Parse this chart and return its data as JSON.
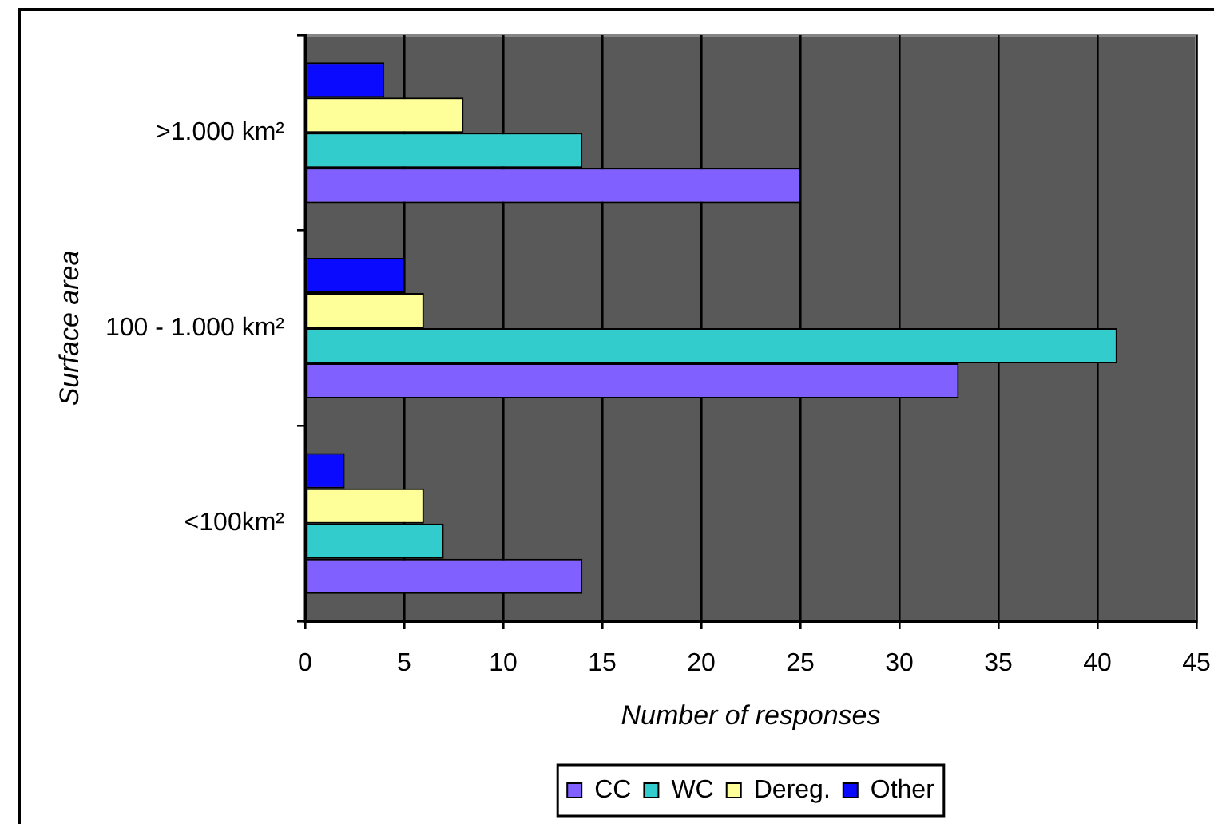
{
  "chart_data": {
    "type": "bar",
    "orientation": "horizontal",
    "xlabel": "Number of responses",
    "ylabel": "Surface area",
    "categories": [
      ">1.000 km²",
      "100 - 1.000 km²",
      "<100km²"
    ],
    "series": [
      {
        "name": "CC",
        "color": "#8060ff",
        "values": [
          25,
          33,
          14
        ]
      },
      {
        "name": "WC",
        "color": "#33cccc",
        "values": [
          14,
          41,
          7
        ]
      },
      {
        "name": "Dereg.",
        "color": "#ffff99",
        "values": [
          8,
          6,
          6
        ]
      },
      {
        "name": "Other",
        "color": "#0a0aff",
        "values": [
          4,
          5,
          2
        ]
      }
    ],
    "xlim": [
      0,
      45
    ],
    "xticks": [
      0,
      5,
      10,
      15,
      20,
      25,
      30,
      35,
      40,
      45
    ],
    "grid": "x",
    "legend": "bottom"
  }
}
